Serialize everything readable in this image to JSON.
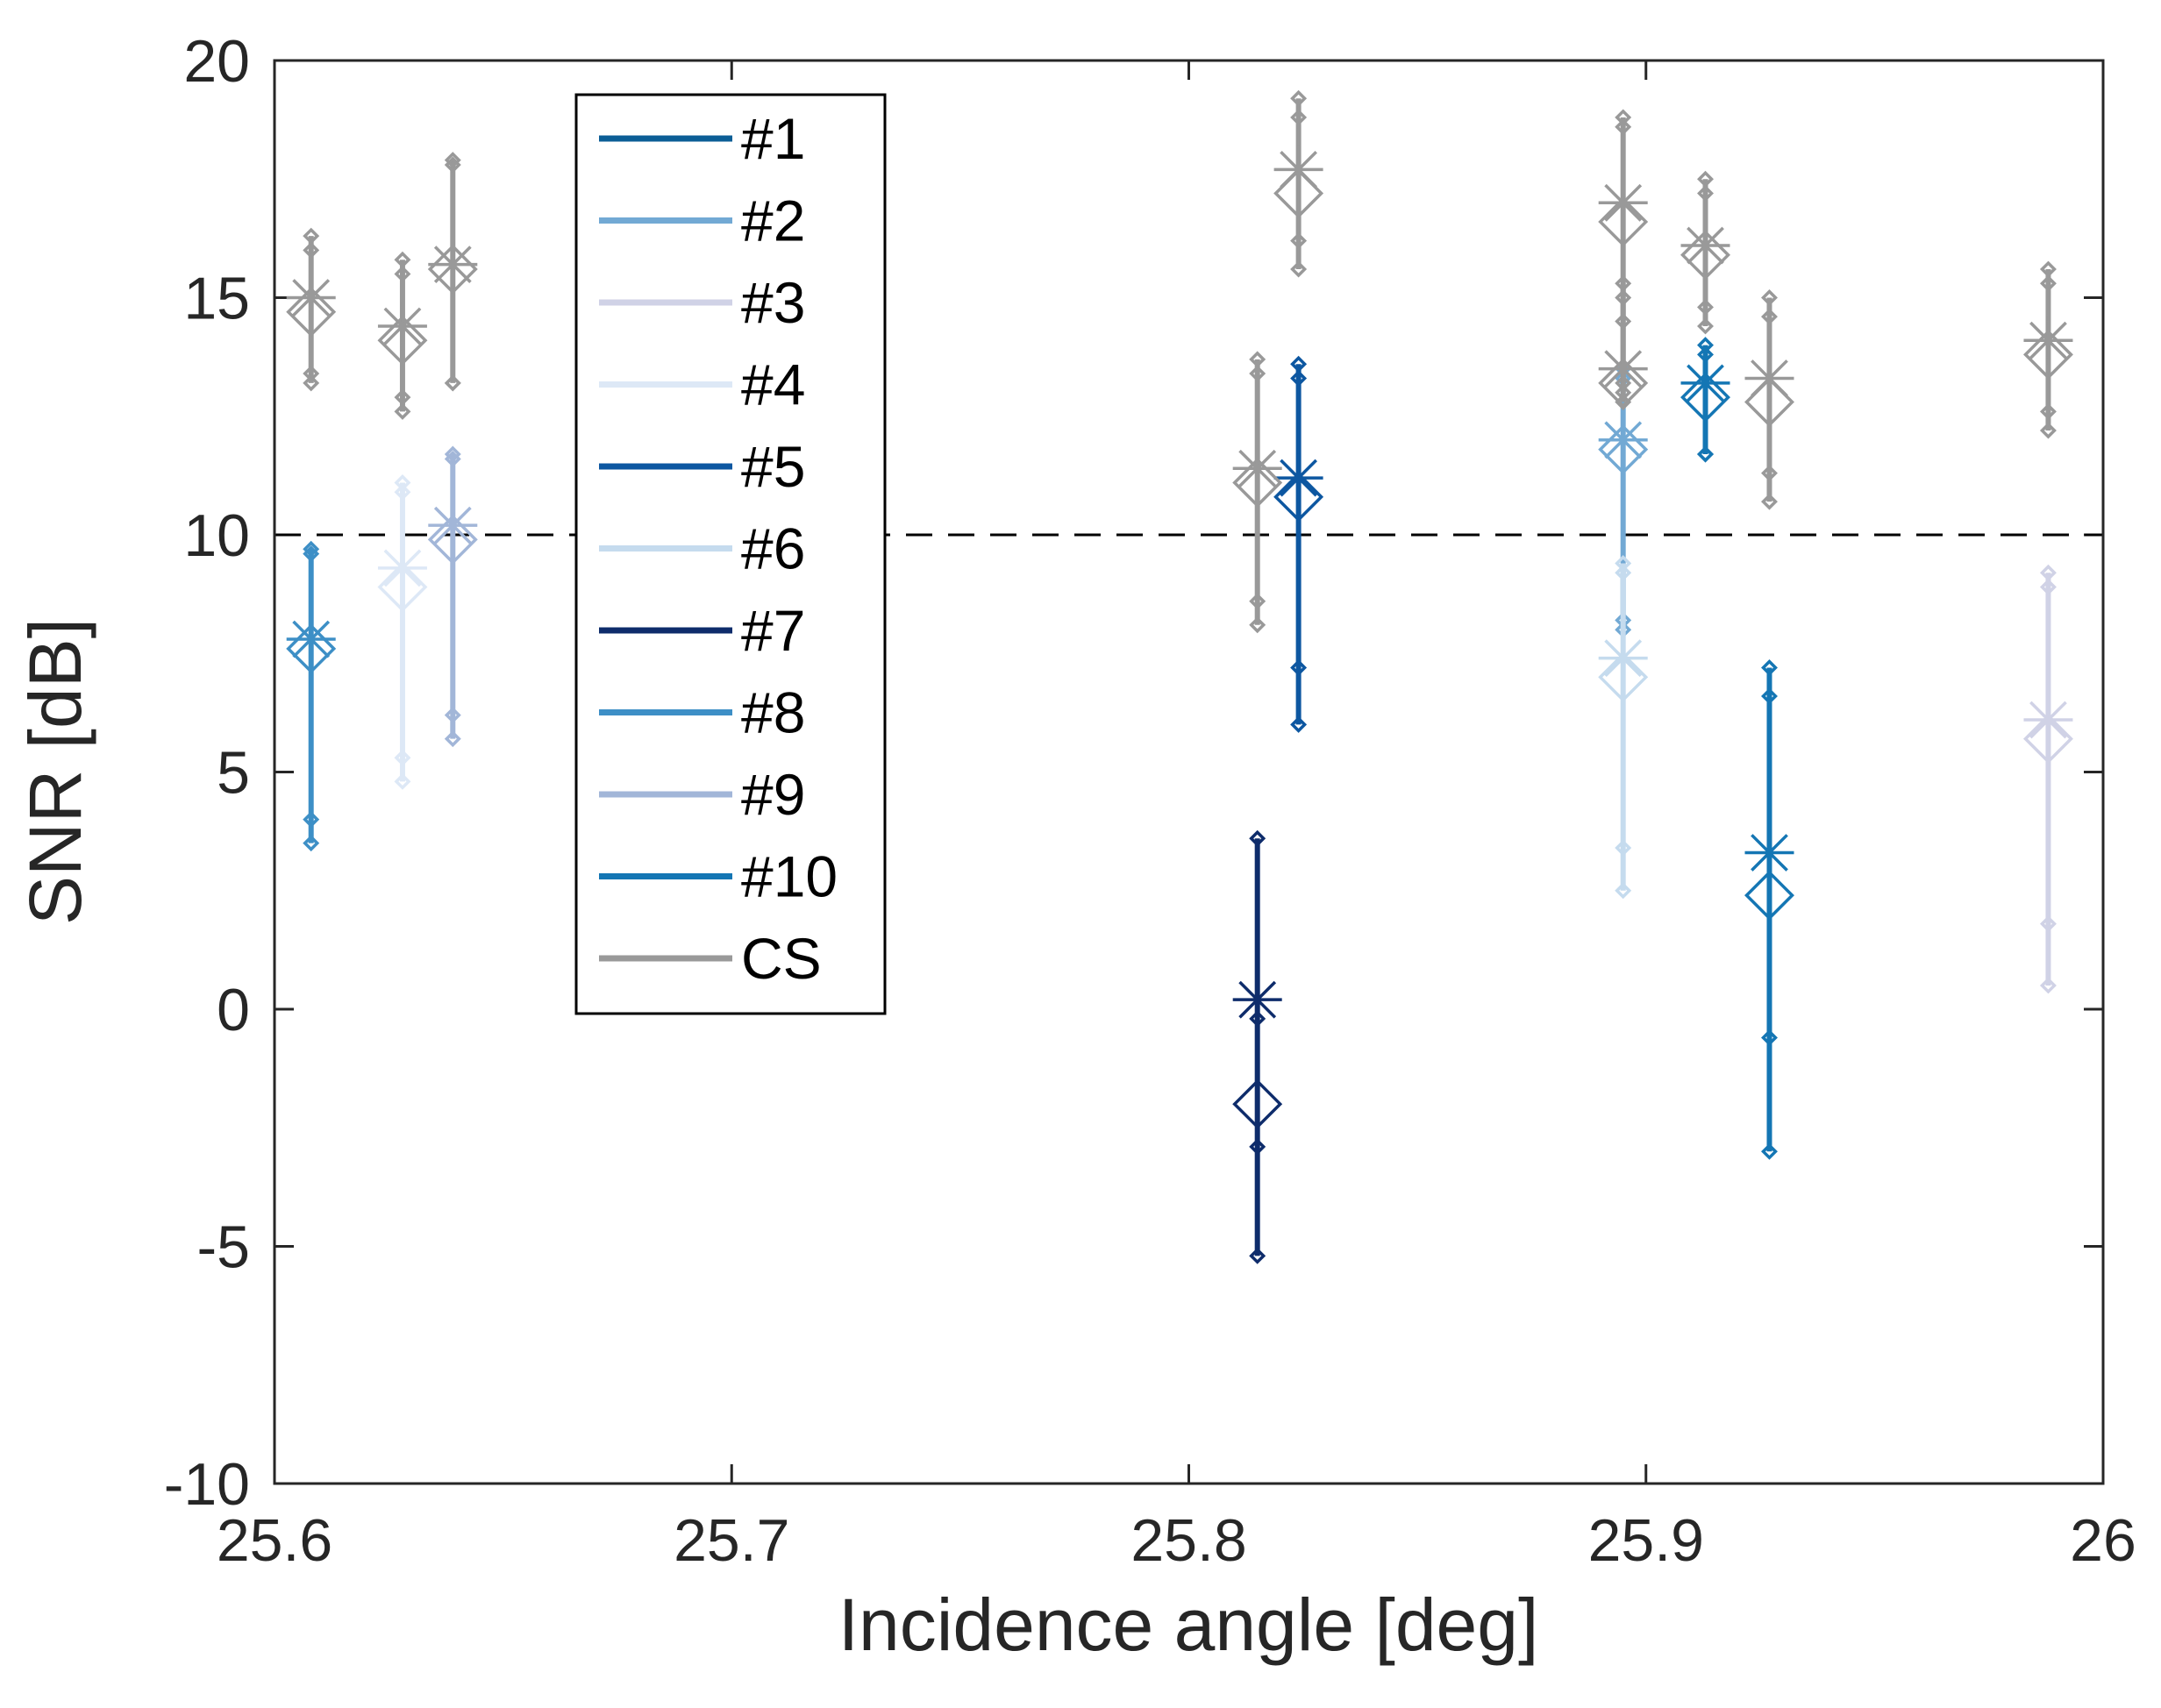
{
  "chart_data": {
    "type": "errorbar",
    "title": "",
    "xlabel": "Incidence angle [deg]",
    "ylabel": "SNR [dB]",
    "xlim": [
      25.6,
      26.0
    ],
    "ylim": [
      -10,
      20
    ],
    "xticks": [
      "25.6",
      "25.7",
      "25.8",
      "25.9",
      "26"
    ],
    "xtick_values": [
      25.6,
      25.7,
      25.8,
      25.9,
      26.0
    ],
    "yticks": [
      "-10",
      "-5",
      "0",
      "5",
      "10",
      "15",
      "20"
    ],
    "ytick_values": [
      -10,
      -5,
      0,
      5,
      10,
      15,
      20
    ],
    "reference_line": {
      "y": 10,
      "style": "dashed"
    },
    "legend_position": "top-left",
    "markers": {
      "mean": "asterisk",
      "median": "diamond",
      "percentiles": "small-diamond"
    },
    "series": [
      {
        "name": "#1",
        "color": "#0b5e96",
        "points": []
      },
      {
        "name": "#2",
        "color": "#72a9d4",
        "points": [
          {
            "x": 25.895,
            "min": 8.0,
            "p10": 8.2,
            "median": 11.8,
            "mean": 12.0,
            "p90": 13.3,
            "max": 13.5
          }
        ]
      },
      {
        "name": "#3",
        "color": "#d0d2e6",
        "points": [
          {
            "x": 25.988,
            "min": 0.5,
            "p10": 1.8,
            "median": 5.7,
            "mean": 6.1,
            "p90": 8.9,
            "max": 9.2
          }
        ]
      },
      {
        "name": "#4",
        "color": "#dde8f6",
        "points": [
          {
            "x": 25.628,
            "min": 4.8,
            "p10": 5.3,
            "median": 8.9,
            "mean": 9.3,
            "p90": 10.9,
            "max": 11.1
          }
        ]
      },
      {
        "name": "#5",
        "color": "#0d57a1",
        "points": [
          {
            "x": 25.824,
            "min": 6.0,
            "p10": 7.2,
            "median": 10.8,
            "mean": 11.2,
            "p90": 13.3,
            "max": 13.6
          }
        ]
      },
      {
        "name": "#6",
        "color": "#c5dbee",
        "points": [
          {
            "x": 25.895,
            "min": 2.5,
            "p10": 3.4,
            "median": 7.0,
            "mean": 7.4,
            "p90": 9.2,
            "max": 9.4
          }
        ]
      },
      {
        "name": "#7",
        "color": "#0e2c6b",
        "points": [
          {
            "x": 25.815,
            "min": -5.2,
            "p10": -2.9,
            "median": -2.0,
            "mean": 0.2,
            "p90": -0.2,
            "max": 3.6
          }
        ]
      },
      {
        "name": "#8",
        "color": "#3d8fc6",
        "points": [
          {
            "x": 25.608,
            "min": 3.5,
            "p10": 4.0,
            "median": 7.6,
            "mean": 7.8,
            "p90": 9.6,
            "max": 9.7
          }
        ]
      },
      {
        "name": "#9",
        "color": "#a2b6d8",
        "points": [
          {
            "x": 25.639,
            "min": 5.7,
            "p10": 6.2,
            "median": 9.9,
            "mean": 10.2,
            "p90": 11.6,
            "max": 11.7
          }
        ]
      },
      {
        "name": "#10",
        "color": "#1476b4",
        "points": [
          {
            "x": 25.913,
            "min": 11.7,
            "p10": 11.7,
            "median": 12.9,
            "mean": 13.2,
            "p90": 13.8,
            "max": 14.0
          },
          {
            "x": 25.927,
            "min": -3.0,
            "p10": -0.6,
            "median": 2.4,
            "mean": 3.3,
            "p90": 6.6,
            "max": 7.2
          }
        ]
      },
      {
        "name": "CS",
        "color": "#999999",
        "points": [
          {
            "x": 25.608,
            "min": 13.2,
            "p10": 13.4,
            "median": 14.7,
            "mean": 15.0,
            "p90": 16.0,
            "max": 16.3
          },
          {
            "x": 25.628,
            "min": 12.6,
            "p10": 12.9,
            "median": 14.1,
            "mean": 14.4,
            "p90": 15.5,
            "max": 15.8
          },
          {
            "x": 25.639,
            "min": 13.2,
            "p10": 13.2,
            "median": 15.6,
            "mean": 15.7,
            "p90": 17.8,
            "max": 17.9
          },
          {
            "x": 25.815,
            "min": 8.1,
            "p10": 8.6,
            "median": 11.1,
            "mean": 11.4,
            "p90": 13.4,
            "max": 13.7
          },
          {
            "x": 25.824,
            "min": 15.6,
            "p10": 16.2,
            "median": 17.2,
            "mean": 17.7,
            "p90": 18.8,
            "max": 19.2
          },
          {
            "x": 25.895,
            "min": 13.0,
            "p10": 14.5,
            "median": 16.6,
            "mean": 17.0,
            "p90": 18.6,
            "max": 18.8
          },
          {
            "x": 25.895,
            "min": 12.8,
            "p10": 13.2,
            "median": 13.2,
            "mean": 13.5,
            "p90": 15.0,
            "max": 15.3
          },
          {
            "x": 25.913,
            "min": 14.4,
            "p10": 14.8,
            "median": 15.9,
            "mean": 16.1,
            "p90": 17.2,
            "max": 17.5
          },
          {
            "x": 25.927,
            "min": 10.7,
            "p10": 11.3,
            "median": 12.8,
            "mean": 13.3,
            "p90": 14.6,
            "max": 15.0
          },
          {
            "x": 25.988,
            "min": 12.2,
            "p10": 12.6,
            "median": 13.8,
            "mean": 14.1,
            "p90": 15.3,
            "max": 15.6
          }
        ]
      }
    ]
  }
}
